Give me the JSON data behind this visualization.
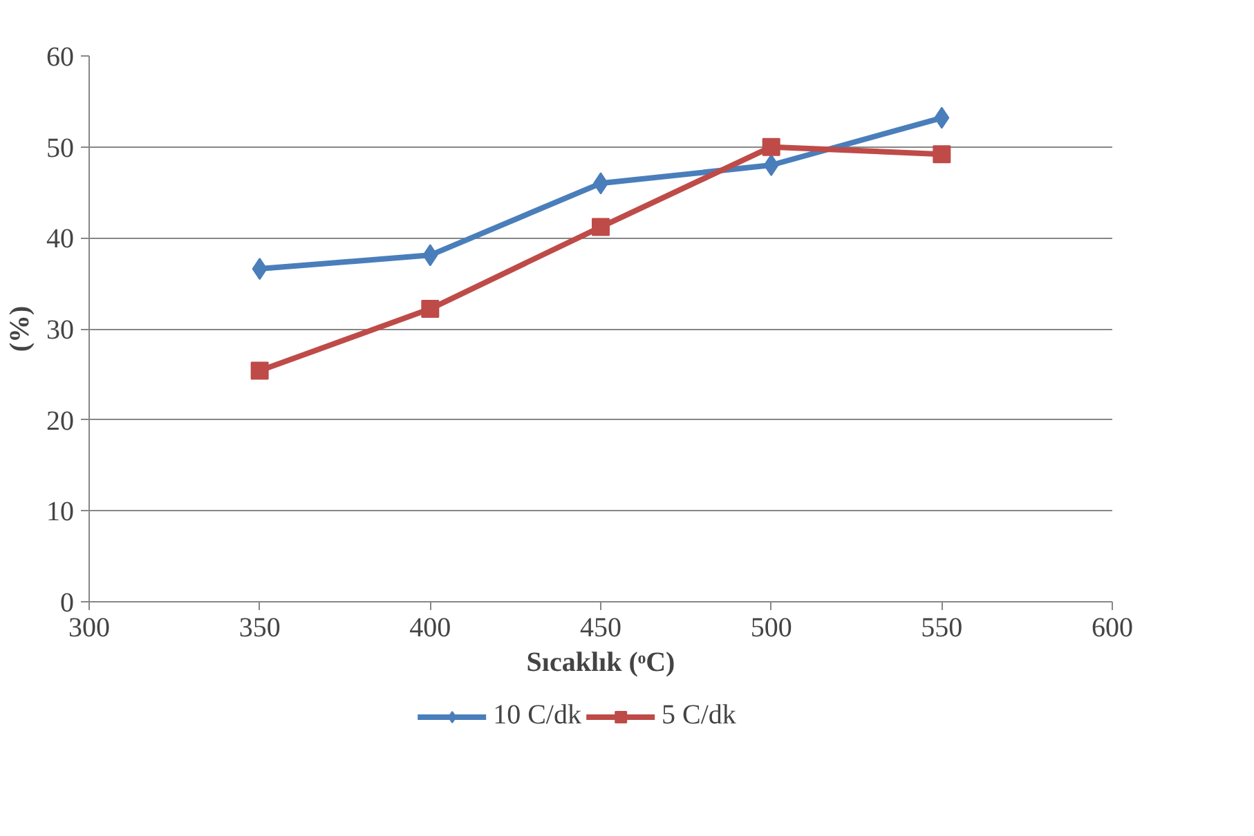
{
  "chart_data": {
    "type": "line",
    "xlabel": "Sıcaklık (ᵒC)",
    "ylabel": "(%)",
    "x": [
      350,
      400,
      450,
      500,
      550
    ],
    "series": [
      {
        "name": "10 C/dk",
        "color": "#4a7ebb",
        "marker": "diamond",
        "values": [
          36.6,
          38.1,
          46.0,
          48.0,
          53.2
        ]
      },
      {
        "name": "5 C/dk",
        "color": "#be4b48",
        "marker": "square",
        "values": [
          25.4,
          32.2,
          41.2,
          50.0,
          49.2
        ]
      }
    ],
    "xlim": [
      300,
      600
    ],
    "xticks": [
      300,
      350,
      400,
      450,
      500,
      550,
      600
    ],
    "ylim": [
      0,
      60
    ],
    "yticks": [
      0,
      10,
      20,
      30,
      40,
      50,
      60
    ],
    "grid": "y",
    "legend": "bottom",
    "line_style": "solid"
  }
}
